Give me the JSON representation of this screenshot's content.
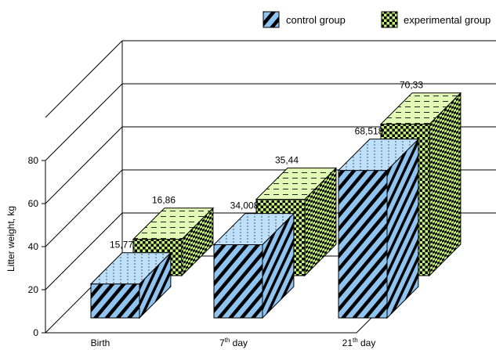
{
  "chart_data": {
    "type": "bar",
    "title": "",
    "xlabel": "",
    "ylabel": "Litter weight, kg",
    "ylim": [
      0,
      80
    ],
    "yticks": [
      "0",
      "20",
      "40",
      "60",
      "80"
    ],
    "categories": [
      {
        "base": "Birth",
        "sup": ""
      },
      {
        "base": "7",
        "sup": "th",
        "rest": " day"
      },
      {
        "base": "21",
        "sup": "th",
        "rest": " day"
      }
    ],
    "series": [
      {
        "name": "control group",
        "values": [
          15.77,
          34.008,
          68.518
        ],
        "labels": [
          "15,77",
          "34,008",
          "68,518"
        ],
        "color": "#8fc4f0",
        "pattern": "diagonal-stripes"
      },
      {
        "name": "experimental group",
        "values": [
          16.86,
          35.44,
          70.33
        ],
        "labels": [
          "16,86",
          "35,44",
          "70,33"
        ],
        "color": "#c6f47a",
        "pattern": "checkerboard"
      }
    ],
    "legend_position": "top-right",
    "grid": true,
    "style": "3d-bar"
  }
}
